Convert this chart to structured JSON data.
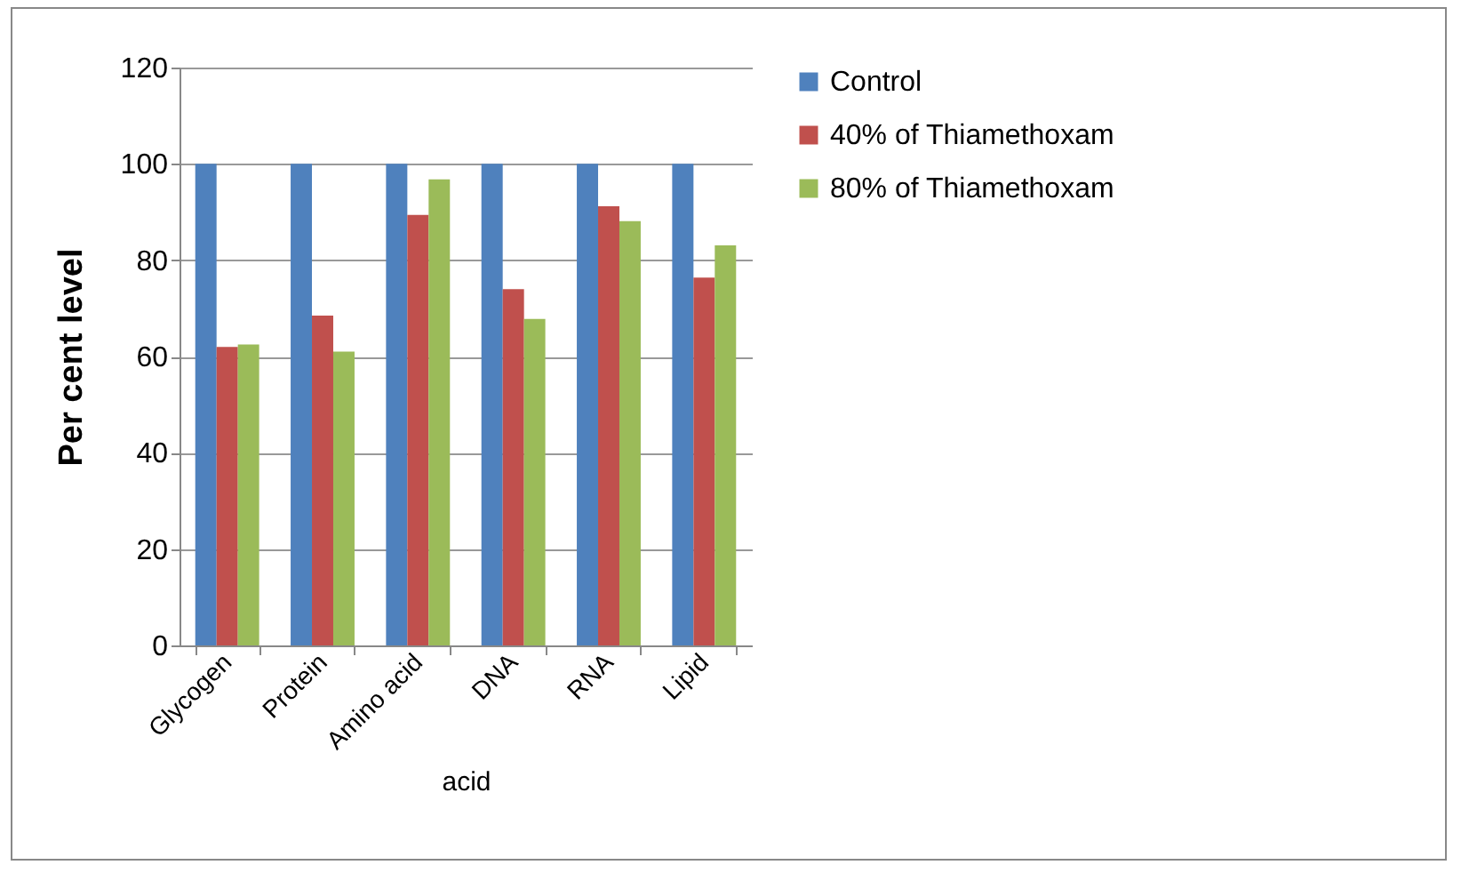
{
  "chart_data": {
    "type": "bar",
    "xlabel": "acid",
    "ylabel": "Per cent level",
    "categories": [
      "Glycogen",
      "Protein",
      "Amino acid",
      "DNA",
      "RNA",
      "Lipid"
    ],
    "series": [
      {
        "name": "Control",
        "color": "#4f81bd",
        "values": [
          100,
          100,
          100,
          100,
          100,
          100
        ]
      },
      {
        "name": "40% of Thiamethoxam",
        "color": "#c0504d",
        "values": [
          62,
          68.5,
          89.4,
          74,
          91.2,
          76.4
        ]
      },
      {
        "name": "80% of Thiamethoxam",
        "color": "#9bbb59",
        "values": [
          62.5,
          61,
          96.8,
          67.8,
          88.1,
          83.1
        ]
      }
    ],
    "ylim": [
      0,
      120
    ],
    "yticks": [
      0,
      20,
      40,
      60,
      80,
      100,
      120
    ],
    "grid": "y",
    "legend": "right"
  }
}
